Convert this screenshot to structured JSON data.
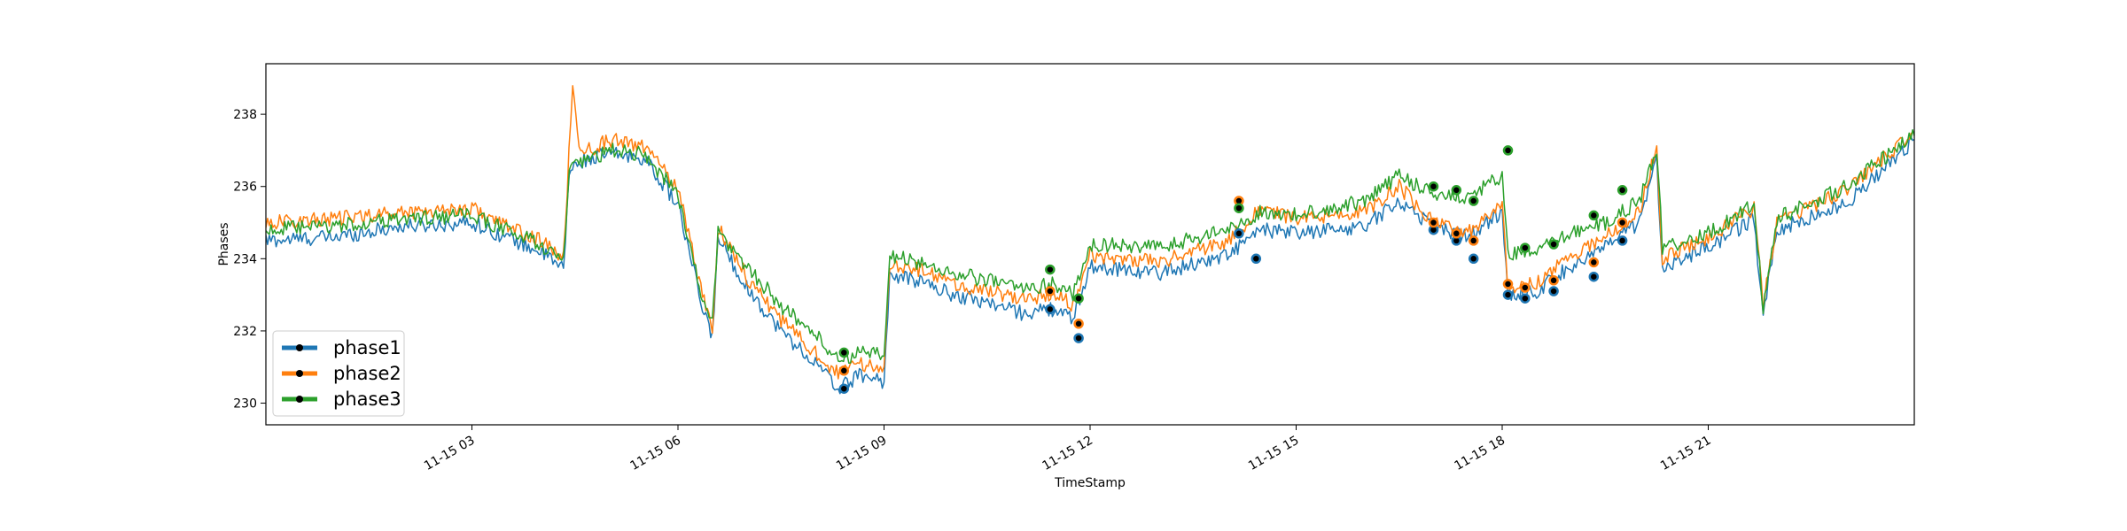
{
  "chart_data": {
    "type": "line",
    "title": "",
    "xlabel": "TimeStamp",
    "ylabel": "Phases",
    "xlim": [
      "2023-11-15 00:00",
      "2023-11-16 00:00"
    ],
    "ylim": [
      229.4,
      239.4
    ],
    "x_ticks": [
      {
        "x": "2023-11-15 03:00",
        "label": "11-15 03"
      },
      {
        "x": "2023-11-15 06:00",
        "label": "11-15 06"
      },
      {
        "x": "2023-11-15 09:00",
        "label": "11-15 09"
      },
      {
        "x": "2023-11-15 12:00",
        "label": "11-15 12"
      },
      {
        "x": "2023-11-15 15:00",
        "label": "11-15 15"
      },
      {
        "x": "2023-11-15 18:00",
        "label": "11-15 18"
      },
      {
        "x": "2023-11-15 21:00",
        "label": "11-15 21"
      }
    ],
    "y_ticks": [
      230,
      232,
      234,
      236,
      238
    ],
    "legend": {
      "position": "lower-left",
      "marker": "black dot"
    },
    "grid": false,
    "series": [
      {
        "name": "phase1",
        "color": "#1f77b4",
        "x": [
          "2023-11-15 00:00",
          "2023-11-15 01:00",
          "2023-11-15 02:00",
          "2023-11-15 03:00",
          "2023-11-15 03:30",
          "2023-11-15 04:00",
          "2023-11-15 04:20",
          "2023-11-15 04:25",
          "2023-11-15 04:35",
          "2023-11-15 05:00",
          "2023-11-15 05:30",
          "2023-11-15 06:00",
          "2023-11-15 06:20",
          "2023-11-15 06:30",
          "2023-11-15 06:35",
          "2023-11-15 07:00",
          "2023-11-15 07:30",
          "2023-11-15 08:00",
          "2023-11-15 08:20",
          "2023-11-15 08:40",
          "2023-11-15 09:00",
          "2023-11-15 09:05",
          "2023-11-15 09:30",
          "2023-11-15 10:00",
          "2023-11-15 10:30",
          "2023-11-15 11:00",
          "2023-11-15 11:30",
          "2023-11-15 11:45",
          "2023-11-15 12:00",
          "2023-11-15 13:00",
          "2023-11-15 14:00",
          "2023-11-15 14:30",
          "2023-11-15 15:00",
          "2023-11-15 16:00",
          "2023-11-15 16:30",
          "2023-11-15 17:00",
          "2023-11-15 17:30",
          "2023-11-15 18:00",
          "2023-11-15 18:05",
          "2023-11-15 18:30",
          "2023-11-15 19:00",
          "2023-11-15 19:30",
          "2023-11-15 20:00",
          "2023-11-15 20:15",
          "2023-11-15 20:20",
          "2023-11-15 21:00",
          "2023-11-15 21:40",
          "2023-11-15 21:48",
          "2023-11-15 22:00",
          "2023-11-15 23:00",
          "2023-11-16 00:00"
        ],
        "values": [
          234.5,
          234.6,
          234.9,
          235.0,
          234.6,
          234.2,
          233.7,
          236.4,
          236.7,
          236.9,
          236.8,
          235.5,
          232.8,
          231.8,
          234.6,
          233.2,
          232.0,
          231.1,
          230.4,
          230.8,
          230.6,
          233.5,
          233.4,
          233.0,
          232.8,
          232.5,
          232.6,
          232.3,
          233.8,
          233.6,
          234.1,
          234.8,
          234.7,
          234.9,
          235.6,
          234.9,
          234.6,
          235.3,
          233.0,
          233.1,
          233.8,
          234.3,
          235.0,
          236.7,
          233.8,
          234.3,
          235.1,
          232.4,
          234.8,
          235.5,
          237.3
        ]
      },
      {
        "name": "phase2",
        "color": "#ff7f0e",
        "x": [
          "2023-11-15 00:00",
          "2023-11-15 01:00",
          "2023-11-15 02:00",
          "2023-11-15 03:00",
          "2023-11-15 03:30",
          "2023-11-15 04:00",
          "2023-11-15 04:20",
          "2023-11-15 04:28",
          "2023-11-15 04:35",
          "2023-11-15 05:00",
          "2023-11-15 05:30",
          "2023-11-15 06:00",
          "2023-11-15 06:20",
          "2023-11-15 06:30",
          "2023-11-15 06:35",
          "2023-11-15 07:00",
          "2023-11-15 07:30",
          "2023-11-15 08:00",
          "2023-11-15 08:20",
          "2023-11-15 08:40",
          "2023-11-15 09:00",
          "2023-11-15 09:05",
          "2023-11-15 09:30",
          "2023-11-15 10:00",
          "2023-11-15 10:30",
          "2023-11-15 11:00",
          "2023-11-15 11:30",
          "2023-11-15 11:45",
          "2023-11-15 12:00",
          "2023-11-15 13:00",
          "2023-11-15 14:00",
          "2023-11-15 14:30",
          "2023-11-15 15:00",
          "2023-11-15 16:00",
          "2023-11-15 16:30",
          "2023-11-15 17:00",
          "2023-11-15 17:30",
          "2023-11-15 18:00",
          "2023-11-15 18:05",
          "2023-11-15 18:30",
          "2023-11-15 19:00",
          "2023-11-15 19:30",
          "2023-11-15 20:00",
          "2023-11-15 20:15",
          "2023-11-15 20:20",
          "2023-11-15 21:00",
          "2023-11-15 21:40",
          "2023-11-15 21:48",
          "2023-11-15 22:00",
          "2023-11-15 23:00",
          "2023-11-16 00:00"
        ],
        "values": [
          235.0,
          235.1,
          235.3,
          235.4,
          234.9,
          234.5,
          234.0,
          238.8,
          236.9,
          237.3,
          237.1,
          236.0,
          233.2,
          232.0,
          234.9,
          233.5,
          232.3,
          231.4,
          230.8,
          231.1,
          230.9,
          233.9,
          233.7,
          233.3,
          233.1,
          232.9,
          233.0,
          232.7,
          234.1,
          233.9,
          234.5,
          235.4,
          235.1,
          235.3,
          236.0,
          235.0,
          234.7,
          235.6,
          233.2,
          233.3,
          234.1,
          234.6,
          235.3,
          237.1,
          234.0,
          234.6,
          235.4,
          232.7,
          235.0,
          235.9,
          237.5
        ]
      },
      {
        "name": "phase3",
        "color": "#2ca02c",
        "x": [
          "2023-11-15 00:00",
          "2023-11-15 01:00",
          "2023-11-15 02:00",
          "2023-11-15 03:00",
          "2023-11-15 03:30",
          "2023-11-15 04:00",
          "2023-11-15 04:20",
          "2023-11-15 04:25",
          "2023-11-15 04:35",
          "2023-11-15 05:00",
          "2023-11-15 05:30",
          "2023-11-15 06:00",
          "2023-11-15 06:20",
          "2023-11-15 06:30",
          "2023-11-15 06:35",
          "2023-11-15 07:00",
          "2023-11-15 07:30",
          "2023-11-15 08:00",
          "2023-11-15 08:20",
          "2023-11-15 08:40",
          "2023-11-15 09:00",
          "2023-11-15 09:05",
          "2023-11-15 09:30",
          "2023-11-15 10:00",
          "2023-11-15 10:30",
          "2023-11-15 11:00",
          "2023-11-15 11:30",
          "2023-11-15 11:45",
          "2023-11-15 12:00",
          "2023-11-15 13:00",
          "2023-11-15 14:00",
          "2023-11-15 14:30",
          "2023-11-15 15:00",
          "2023-11-15 16:00",
          "2023-11-15 16:30",
          "2023-11-15 17:00",
          "2023-11-15 17:30",
          "2023-11-15 18:00",
          "2023-11-15 18:05",
          "2023-11-15 18:30",
          "2023-11-15 19:00",
          "2023-11-15 19:30",
          "2023-11-15 20:00",
          "2023-11-15 20:15",
          "2023-11-15 20:20",
          "2023-11-15 21:00",
          "2023-11-15 21:40",
          "2023-11-15 21:48",
          "2023-11-15 22:00",
          "2023-11-15 23:00",
          "2023-11-16 00:00"
        ],
        "values": [
          234.8,
          234.9,
          235.1,
          235.2,
          234.8,
          234.4,
          233.9,
          236.5,
          236.6,
          237.0,
          236.9,
          235.8,
          233.0,
          232.3,
          234.7,
          233.8,
          232.7,
          231.9,
          231.2,
          231.4,
          231.3,
          234.1,
          233.9,
          233.6,
          233.4,
          233.2,
          233.3,
          233.0,
          234.4,
          234.3,
          234.8,
          235.3,
          235.2,
          235.6,
          236.3,
          235.8,
          235.7,
          236.3,
          234.1,
          234.2,
          234.7,
          235.0,
          235.6,
          237.1,
          234.3,
          234.7,
          235.5,
          232.6,
          235.1,
          236.0,
          237.4
        ]
      }
    ],
    "anomalies": [
      {
        "series": "phase1",
        "x": [
          "2023-11-15 08:25",
          "2023-11-15 11:25",
          "2023-11-15 11:50",
          "2023-11-15 14:10",
          "2023-11-15 14:25",
          "2023-11-15 17:00",
          "2023-11-15 17:20",
          "2023-11-15 17:35",
          "2023-11-15 18:05",
          "2023-11-15 18:20",
          "2023-11-15 18:45",
          "2023-11-15 19:20",
          "2023-11-15 19:45"
        ],
        "values": [
          230.4,
          232.6,
          231.8,
          234.7,
          234.0,
          234.8,
          234.5,
          234.0,
          233.0,
          232.9,
          233.1,
          233.5,
          234.5
        ]
      },
      {
        "series": "phase2",
        "x": [
          "2023-11-15 08:25",
          "2023-11-15 11:25",
          "2023-11-15 11:50",
          "2023-11-15 14:10",
          "2023-11-15 17:00",
          "2023-11-15 17:20",
          "2023-11-15 17:35",
          "2023-11-15 18:05",
          "2023-11-15 18:20",
          "2023-11-15 18:45",
          "2023-11-15 19:20",
          "2023-11-15 19:45"
        ],
        "values": [
          230.9,
          233.1,
          232.2,
          235.6,
          235.0,
          234.7,
          234.5,
          233.3,
          233.2,
          233.4,
          233.9,
          235.0
        ]
      },
      {
        "series": "phase3",
        "x": [
          "2023-11-15 08:25",
          "2023-11-15 11:25",
          "2023-11-15 11:50",
          "2023-11-15 14:10",
          "2023-11-15 17:00",
          "2023-11-15 17:20",
          "2023-11-15 17:35",
          "2023-11-15 18:05",
          "2023-11-15 18:20",
          "2023-11-15 18:45",
          "2023-11-15 19:20",
          "2023-11-15 19:45"
        ],
        "values": [
          231.4,
          233.7,
          232.9,
          235.4,
          236.0,
          235.9,
          235.6,
          237.0,
          234.3,
          234.4,
          235.2,
          235.9
        ]
      }
    ]
  }
}
